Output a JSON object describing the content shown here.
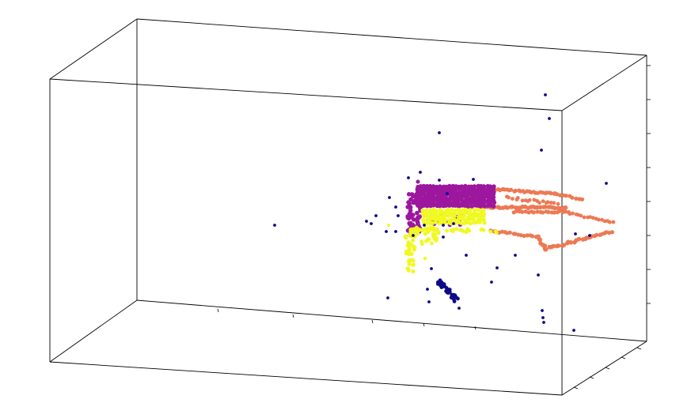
{
  "chart_data": {
    "type": "scatter",
    "projection": "3d",
    "title": "",
    "xlabel": "",
    "ylabel": "",
    "zlabel": "",
    "tick_labels": "none",
    "grid": false,
    "legend": "none",
    "series": [
      {
        "color": "#0d0887",
        "marker_size": "small",
        "description_kind": "outlier points"
      },
      {
        "color": "#9c179e",
        "marker_size": "medium"
      },
      {
        "color": "#f0f921",
        "marker_size": "medium"
      },
      {
        "color": "#ed7953",
        "marker_size": "medium"
      }
    ]
  }
}
